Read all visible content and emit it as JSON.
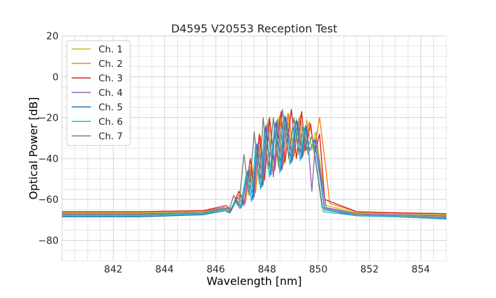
{
  "chart_data": {
    "type": "line",
    "title": "D4595 V20553 Reception Test",
    "xlabel": "Wavelength [nm]",
    "ylabel": "Optical Power [dB]",
    "xlim": [
      840,
      855
    ],
    "ylim": [
      -90,
      20
    ],
    "xticks": [
      "842",
      "844",
      "846",
      "848",
      "850",
      "852",
      "854"
    ],
    "yticks": [
      "20",
      "0",
      "−20",
      "−40",
      "−60",
      "−80"
    ],
    "grid": true,
    "legend_position": "top-left",
    "series": [
      {
        "name": "Ch. 1",
        "color": "#bcbd22",
        "x": [
          840.0,
          843.0,
          845.5,
          846.4,
          846.6,
          846.9,
          847.1,
          847.35,
          847.5,
          847.7,
          847.85,
          848.05,
          848.25,
          848.45,
          848.6,
          848.8,
          849.0,
          849.25,
          849.4,
          849.55,
          849.75,
          849.9,
          850.1,
          850.3,
          851.5,
          853.0,
          855.0
        ],
        "y": [
          -66.5,
          -66.5,
          -66,
          -64,
          -65.5,
          -58,
          -63,
          -44,
          -58,
          -30,
          -52,
          -21,
          -47,
          -20,
          -44,
          -18,
          -40,
          -20,
          -38,
          -21,
          -36,
          -27,
          -45,
          -63,
          -66.5,
          -67,
          -67.5
        ]
      },
      {
        "name": "Ch. 2",
        "color": "#ff7f0e",
        "x": [
          840.0,
          843.0,
          845.5,
          846.4,
          846.6,
          846.95,
          847.15,
          847.4,
          847.55,
          847.75,
          847.9,
          848.1,
          848.3,
          848.5,
          848.65,
          848.85,
          849.05,
          849.3,
          849.45,
          849.65,
          849.85,
          850.05,
          850.25,
          850.45,
          851.5,
          853.0,
          855.0
        ],
        "y": [
          -66,
          -66,
          -65.5,
          -64,
          -65,
          -57,
          -62,
          -42,
          -57,
          -29,
          -51,
          -21,
          -46,
          -19,
          -43,
          -18,
          -39,
          -19,
          -37,
          -22,
          -35,
          -20,
          -40,
          -62,
          -66,
          -66.5,
          -67
        ]
      },
      {
        "name": "Ch. 3",
        "color": "#d62728",
        "x": [
          840.0,
          843.0,
          845.5,
          846.4,
          846.6,
          846.9,
          847.1,
          847.35,
          847.5,
          847.7,
          847.9,
          848.1,
          848.3,
          848.55,
          848.7,
          848.95,
          849.15,
          849.35,
          849.5,
          849.7,
          849.85,
          850.05,
          850.25,
          851.5,
          853.0,
          855.0
        ],
        "y": [
          -66,
          -66,
          -65.5,
          -63,
          -65,
          -56,
          -62,
          -40,
          -56,
          -28,
          -50,
          -20,
          -45,
          -17,
          -42,
          -16,
          -40,
          -17,
          -36,
          -23,
          -38,
          -28,
          -60,
          -66,
          -66.5,
          -67
        ]
      },
      {
        "name": "Ch. 4",
        "color": "#9467bd",
        "x": [
          840.0,
          843.0,
          845.5,
          846.4,
          846.6,
          846.85,
          847.1,
          847.3,
          847.5,
          847.65,
          847.85,
          848.0,
          848.25,
          848.4,
          848.6,
          848.75,
          849.0,
          849.2,
          849.4,
          849.55,
          849.75,
          849.9,
          850.1,
          850.3,
          851.5,
          853.0,
          855.0
        ],
        "y": [
          -67,
          -67,
          -66.5,
          -64.5,
          -65.5,
          -59,
          -63,
          -45,
          -59,
          -32,
          -53,
          -23,
          -49,
          -21,
          -45,
          -20,
          -41,
          -22,
          -39,
          -24,
          -56,
          -30,
          -48,
          -64,
          -67,
          -67.5,
          -68
        ]
      },
      {
        "name": "Ch. 5",
        "color": "#1f77b4",
        "x": [
          840.0,
          843.0,
          845.5,
          846.35,
          846.55,
          846.8,
          847.0,
          847.25,
          847.45,
          847.6,
          847.8,
          847.95,
          848.15,
          848.35,
          848.55,
          848.7,
          848.95,
          849.15,
          849.35,
          849.5,
          849.65,
          849.85,
          850.05,
          850.25,
          851.5,
          853.0,
          855.0
        ],
        "y": [
          -68.5,
          -68.5,
          -67.5,
          -65.5,
          -66.5,
          -60,
          -64,
          -46,
          -60,
          -33,
          -54,
          -24,
          -48,
          -22,
          -46,
          -19,
          -42,
          -21,
          -40,
          -24,
          -36,
          -31,
          -47,
          -65,
          -68,
          -68.5,
          -69.5
        ]
      },
      {
        "name": "Ch. 6",
        "color": "#17becf",
        "x": [
          840.0,
          843.0,
          845.5,
          846.3,
          846.5,
          846.75,
          846.95,
          847.2,
          847.4,
          847.55,
          847.75,
          847.9,
          848.1,
          848.3,
          848.5,
          848.65,
          848.9,
          849.1,
          849.3,
          849.45,
          849.6,
          849.8,
          850.0,
          850.2,
          851.5,
          853.0,
          855.0
        ],
        "y": [
          -68,
          -68,
          -67,
          -65,
          -66.5,
          -61,
          -64.5,
          -47,
          -61,
          -34,
          -55,
          -25,
          -49,
          -23,
          -47,
          -20,
          -43,
          -22,
          -41,
          -25,
          -38,
          -32,
          -49,
          -66,
          -68,
          -68.5,
          -69
        ]
      },
      {
        "name": "Ch. 7",
        "color": "#7f7f7f",
        "x": [
          840.0,
          843.0,
          845.5,
          846.3,
          846.5,
          846.7,
          846.9,
          847.1,
          847.3,
          847.5,
          847.7,
          847.85,
          848.05,
          848.25,
          848.45,
          848.6,
          848.85,
          849.05,
          849.25,
          849.4,
          849.55,
          849.75,
          849.95,
          850.15,
          851.5,
          853.0,
          855.0
        ],
        "y": [
          -67.5,
          -67.5,
          -66.5,
          -64,
          -66,
          -58,
          -63.5,
          -38,
          -58,
          -27,
          -52,
          -20,
          -45,
          -20,
          -44,
          -16,
          -40,
          -20,
          -38,
          -24,
          -36,
          -29,
          -46,
          -64,
          -67.5,
          -68,
          -68.5
        ]
      }
    ]
  }
}
